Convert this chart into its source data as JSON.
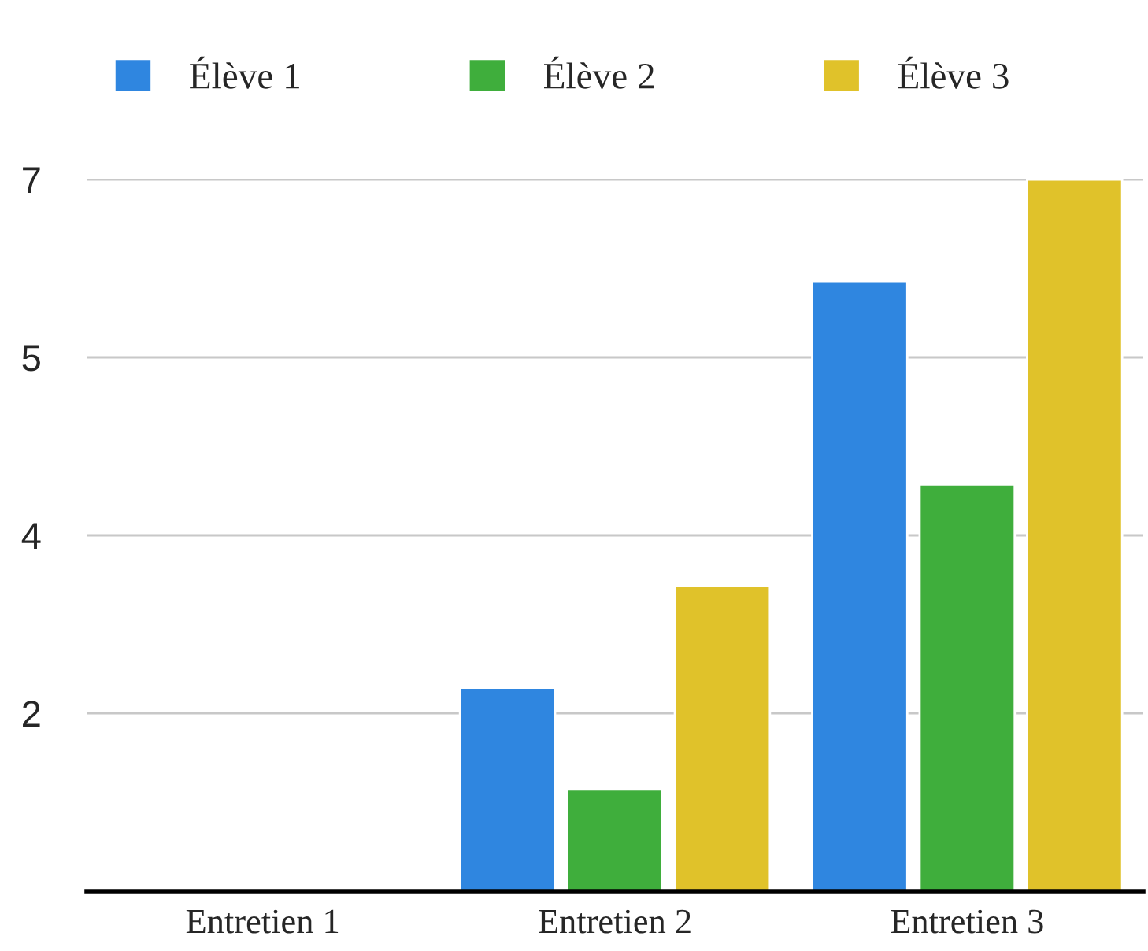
{
  "chart_data": {
    "type": "bar",
    "categories": [
      "Entretien 1",
      "Entretien 2",
      "Entretien 3"
    ],
    "series": [
      {
        "name": "Élève 1",
        "color": "#2f86e0",
        "values": [
          null,
          2,
          6
        ]
      },
      {
        "name": "Élève 2",
        "color": "#3fae3c",
        "values": [
          null,
          1,
          4
        ]
      },
      {
        "name": "Élève 3",
        "color": "#e0c22a",
        "values": [
          null,
          3,
          7
        ]
      }
    ],
    "ylim": [
      0,
      7
    ],
    "yticks": [
      {
        "value": 1.75,
        "label": "2"
      },
      {
        "value": 3.5,
        "label": "4"
      },
      {
        "value": 5.25,
        "label": "5"
      },
      {
        "value": 7,
        "label": "7"
      }
    ],
    "grid": "y",
    "legend": "top"
  }
}
